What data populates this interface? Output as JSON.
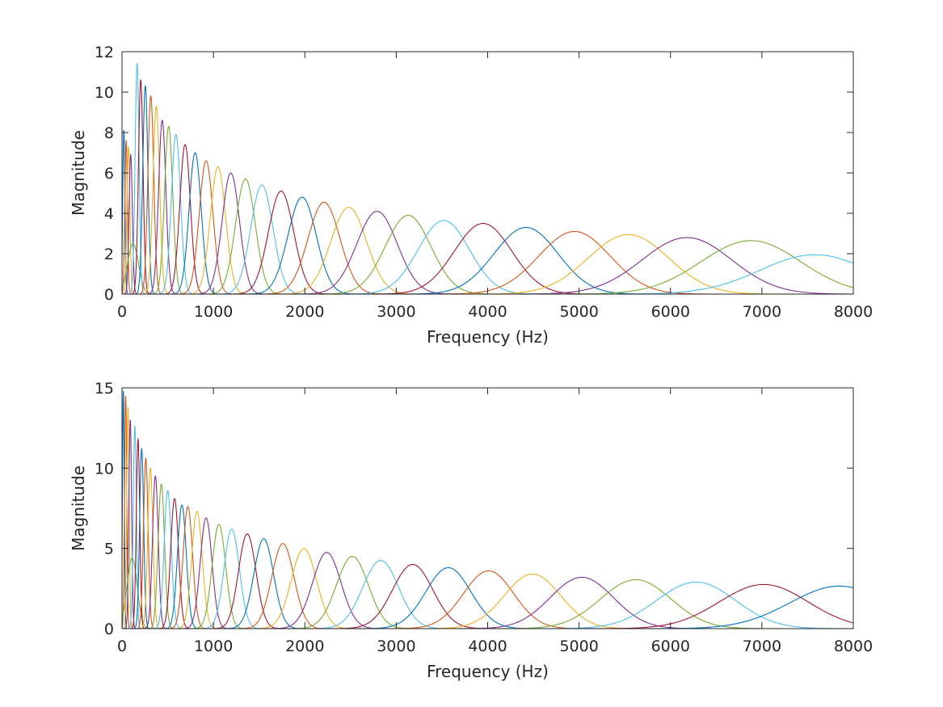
{
  "figure": {
    "background": "#ffffff"
  },
  "palette": [
    "#0072bd",
    "#d95319",
    "#edb120",
    "#7e2f8e",
    "#77ac30",
    "#4dbeee",
    "#a2142f"
  ],
  "chart_data": [
    {
      "type": "line",
      "xlabel": "Frequency (Hz)",
      "ylabel": "Magnitude",
      "xlim": [
        0,
        8000
      ],
      "ylim": [
        0,
        12
      ],
      "xticks": [
        "0",
        "1000",
        "2000",
        "3000",
        "4000",
        "5000",
        "6000",
        "7000",
        "8000"
      ],
      "yticks": [
        "0",
        "2",
        "4",
        "6",
        "8",
        "10",
        "12"
      ],
      "grid": false,
      "legend": "none",
      "filter_bank": {
        "centers_hz": [
          20,
          45,
          70,
          95,
          120,
          165,
          205,
          255,
          315,
          375,
          440,
          510,
          590,
          690,
          800,
          920,
          1050,
          1190,
          1350,
          1530,
          1740,
          1970,
          2210,
          2480,
          2790,
          3130,
          3520,
          3950,
          4420,
          4950,
          5540,
          6180,
          6880,
          7580
        ],
        "peaks": [
          8.1,
          7.6,
          7.3,
          6.9,
          2.5,
          11.4,
          10.6,
          10.3,
          9.8,
          9.3,
          8.6,
          8.3,
          7.9,
          7.4,
          7.0,
          6.6,
          6.3,
          6.0,
          5.7,
          5.4,
          5.1,
          4.8,
          4.55,
          4.3,
          4.1,
          3.9,
          3.65,
          3.5,
          3.3,
          3.1,
          2.95,
          2.8,
          2.65,
          1.95
        ],
        "widths_hz": [
          12,
          14,
          16,
          18,
          60,
          22,
          25,
          28,
          32,
          36,
          40,
          45,
          50,
          58,
          66,
          75,
          84,
          95,
          108,
          122,
          138,
          155,
          175,
          196,
          222,
          250,
          280,
          315,
          350,
          392,
          440,
          490,
          545,
          600
        ]
      }
    },
    {
      "type": "line",
      "xlabel": "Frequency (Hz)",
      "ylabel": "Magnitude",
      "xlim": [
        0,
        8000
      ],
      "ylim": [
        0,
        15
      ],
      "xticks": [
        "0",
        "1000",
        "2000",
        "3000",
        "4000",
        "5000",
        "6000",
        "7000",
        "8000"
      ],
      "yticks": [
        "0",
        "5",
        "10",
        "15"
      ],
      "grid": false,
      "legend": "none",
      "filter_bank": {
        "centers_hz": [
          15,
          40,
          65,
          90,
          110,
          140,
          175,
          215,
          260,
          310,
          365,
          430,
          500,
          575,
          655,
          720,
          820,
          920,
          1060,
          1200,
          1370,
          1550,
          1760,
          1990,
          2240,
          2520,
          2830,
          3180,
          3570,
          4010,
          4490,
          5030,
          5620,
          6280,
          7020,
          7850
        ],
        "peaks": [
          14.8,
          14.5,
          13.8,
          13.0,
          4.4,
          12.6,
          11.8,
          11.2,
          10.6,
          10.0,
          9.5,
          9.0,
          8.6,
          8.1,
          7.7,
          7.6,
          7.3,
          6.9,
          6.5,
          6.2,
          5.9,
          5.6,
          5.3,
          5.0,
          4.75,
          4.5,
          4.25,
          4.0,
          3.8,
          3.6,
          3.4,
          3.2,
          3.05,
          2.9,
          2.75,
          2.65
        ],
        "widths_hz": [
          10,
          12,
          13,
          15,
          55,
          17,
          19,
          22,
          25,
          28,
          31,
          35,
          39,
          43,
          48,
          52,
          58,
          64,
          74,
          84,
          96,
          108,
          122,
          138,
          155,
          174,
          196,
          220,
          246,
          275,
          308,
          345,
          386,
          432,
          485,
          545
        ]
      }
    }
  ]
}
